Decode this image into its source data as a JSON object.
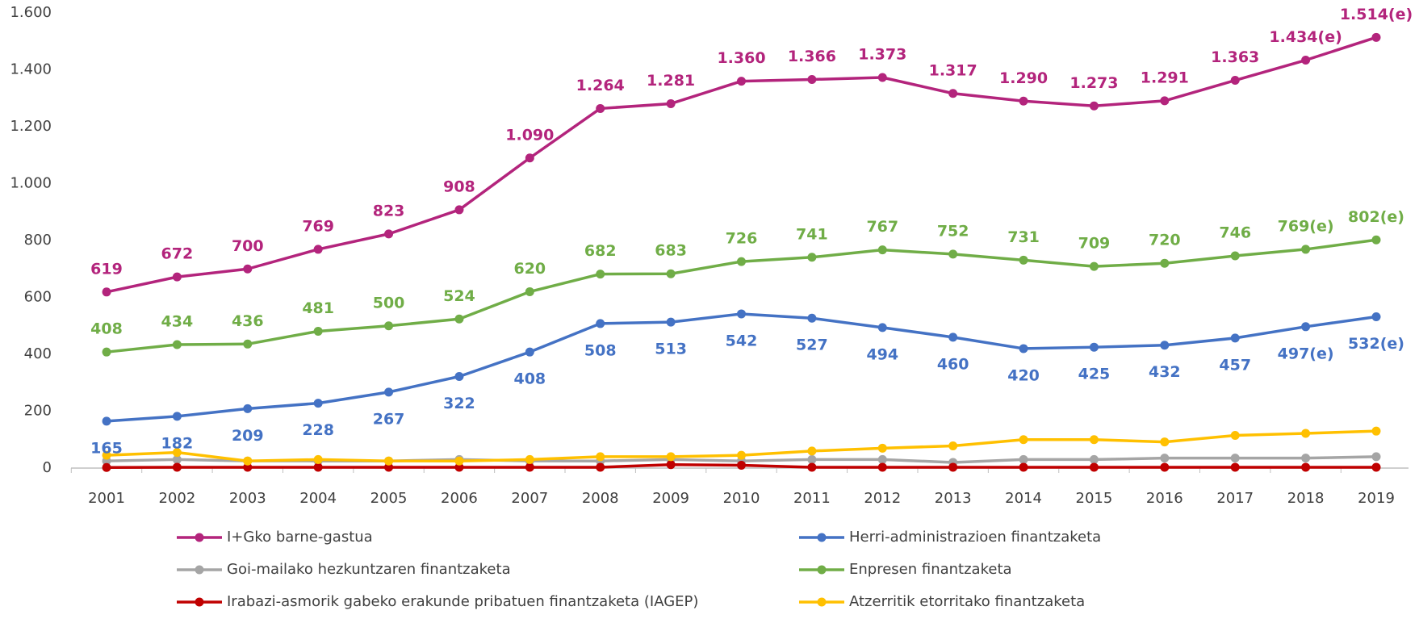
{
  "chart_data": {
    "type": "line",
    "categories": [
      "2001",
      "2002",
      "2003",
      "2004",
      "2005",
      "2006",
      "2007",
      "2008",
      "2009",
      "2010",
      "2011",
      "2012",
      "2013",
      "2014",
      "2015",
      "2016",
      "2017",
      "2018",
      "2019"
    ],
    "ylim": [
      0,
      1600
    ],
    "yticks": [
      0,
      200,
      400,
      600,
      800,
      {
        "value": 1000,
        "label": "1.000"
      },
      {
        "value": 1200,
        "label": "1.200"
      },
      {
        "value": 1400,
        "label": "1.400"
      },
      {
        "value": 1600,
        "label": "1.600"
      }
    ],
    "grid": false,
    "series": [
      {
        "name": "I+Gko barne-gastua",
        "color": "#b3247c",
        "values": [
          619,
          672,
          700,
          769,
          823,
          908,
          1090,
          1264,
          1281,
          1360,
          1366,
          1373,
          1317,
          1290,
          1273,
          1291,
          1363,
          1434,
          1514
        ],
        "value_labels": [
          "619",
          "672",
          "700",
          "769",
          "823",
          "908",
          "1.090",
          "1.264",
          "1.281",
          "1.360",
          "1.366",
          "1.373",
          "1.317",
          "1.290",
          "1.273",
          "1.291",
          "1.363",
          "1.434(e)",
          "1.514(e)"
        ]
      },
      {
        "name": "Herri-administrazioen finantzaketa",
        "color": "#4472c4",
        "values": [
          165,
          182,
          209,
          228,
          267,
          322,
          408,
          508,
          513,
          542,
          527,
          494,
          460,
          420,
          425,
          432,
          457,
          497,
          532
        ],
        "value_labels": [
          "165",
          "182",
          "209",
          "228",
          "267",
          "322",
          "408",
          "508",
          "513",
          "542",
          "527",
          "494",
          "460",
          "420",
          "425",
          "432",
          "457",
          "497(e)",
          "532(e)"
        ]
      },
      {
        "name": "Goi-mailako hezkuntzaren finantzaketa",
        "color": "#a5a5a5",
        "values": [
          25,
          30,
          25,
          25,
          25,
          30,
          25,
          25,
          30,
          25,
          30,
          30,
          20,
          30,
          30,
          35,
          35,
          35,
          40
        ]
      },
      {
        "name": "Enpresen finantzaketa",
        "color": "#70ad47",
        "values": [
          408,
          434,
          436,
          481,
          500,
          524,
          620,
          682,
          683,
          726,
          741,
          767,
          752,
          731,
          709,
          720,
          746,
          769,
          802
        ],
        "value_labels": [
          "408",
          "434",
          "436",
          "481",
          "500",
          "524",
          "620",
          "682",
          "683",
          "726",
          "741",
          "767",
          "752",
          "731",
          "709",
          "720",
          "746",
          "769(e)",
          "802(e)"
        ]
      },
      {
        "name": "Irabazi-asmorik gabeko erakunde pribatuen finantzaketa (IAGEP)",
        "color": "#c00000",
        "values": [
          2,
          3,
          3,
          3,
          3,
          3,
          3,
          3,
          12,
          10,
          3,
          3,
          3,
          3,
          3,
          3,
          3,
          3,
          3
        ]
      },
      {
        "name": "Atzerritik etorritako finantzaketa",
        "color": "#ffc000",
        "values": [
          45,
          55,
          25,
          30,
          25,
          25,
          30,
          40,
          40,
          45,
          60,
          70,
          78,
          100,
          100,
          92,
          115,
          122,
          130
        ]
      }
    ]
  }
}
